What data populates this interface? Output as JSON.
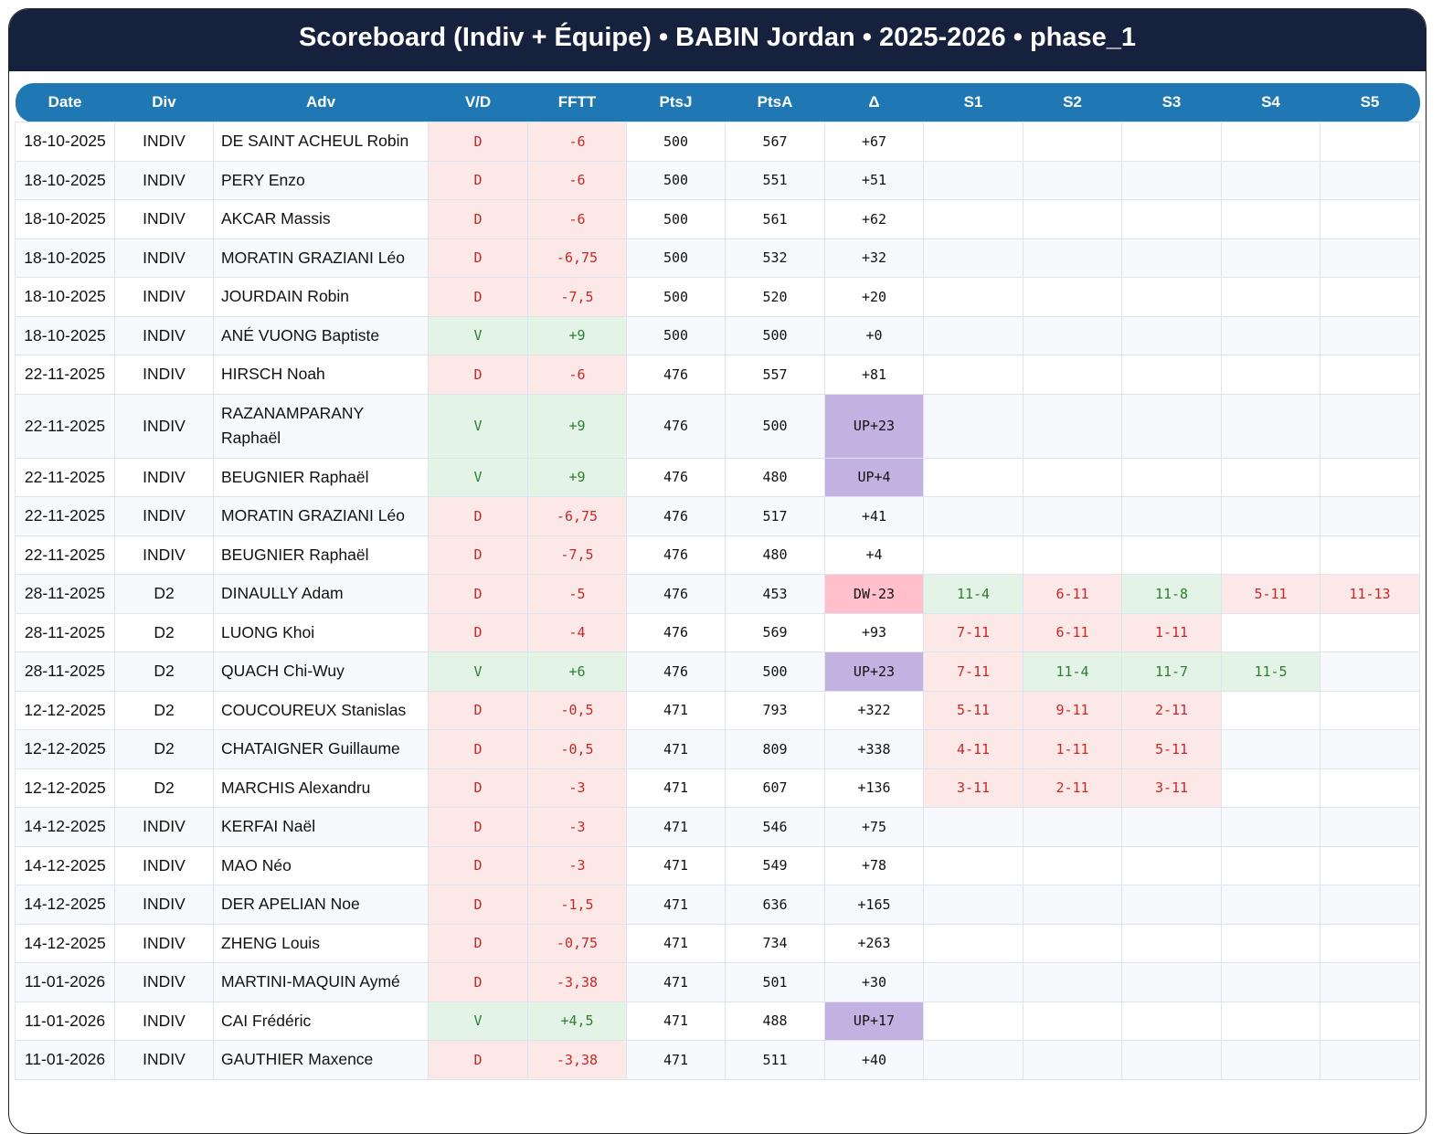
{
  "title": "Scoreboard (Indiv + Équipe) • BABIN Jordan • 2025-2026 • phase_1",
  "columns": [
    "Date",
    "Div",
    "Adv",
    "V/D",
    "FFTT",
    "PtsJ",
    "PtsA",
    "Δ",
    "S1",
    "S2",
    "S3",
    "S4",
    "S5"
  ],
  "colors": {
    "header_bg": "#16213e",
    "table_header": "#1f77b4",
    "win": "#2e7d32",
    "loss": "#c62828",
    "up": "#c3b1e1",
    "down": "#ffc0cb"
  },
  "rows": [
    [
      "18-10-2025",
      "INDIV",
      "DE SAINT ACHEUL Robin",
      "D",
      "-6",
      "500",
      "567",
      "+67",
      "",
      "",
      "",
      "",
      ""
    ],
    [
      "18-10-2025",
      "INDIV",
      "PERY Enzo",
      "D",
      "-6",
      "500",
      "551",
      "+51",
      "",
      "",
      "",
      "",
      ""
    ],
    [
      "18-10-2025",
      "INDIV",
      "AKCAR Massis",
      "D",
      "-6",
      "500",
      "561",
      "+62",
      "",
      "",
      "",
      "",
      ""
    ],
    [
      "18-10-2025",
      "INDIV",
      "MORATIN GRAZIANI Léo",
      "D",
      "-6,75",
      "500",
      "532",
      "+32",
      "",
      "",
      "",
      "",
      ""
    ],
    [
      "18-10-2025",
      "INDIV",
      "JOURDAIN Robin",
      "D",
      "-7,5",
      "500",
      "520",
      "+20",
      "",
      "",
      "",
      "",
      ""
    ],
    [
      "18-10-2025",
      "INDIV",
      "ANÉ VUONG Baptiste",
      "V",
      "+9",
      "500",
      "500",
      "+0",
      "",
      "",
      "",
      "",
      ""
    ],
    [
      "22-11-2025",
      "INDIV",
      "HIRSCH Noah",
      "D",
      "-6",
      "476",
      "557",
      "+81",
      "",
      "",
      "",
      "",
      ""
    ],
    [
      "22-11-2025",
      "INDIV",
      "RAZANAMPARANY Raphaël",
      "V",
      "+9",
      "476",
      "500",
      "UP+23",
      "",
      "",
      "",
      "",
      ""
    ],
    [
      "22-11-2025",
      "INDIV",
      "BEUGNIER Raphaël",
      "V",
      "+9",
      "476",
      "480",
      "UP+4",
      "",
      "",
      "",
      "",
      ""
    ],
    [
      "22-11-2025",
      "INDIV",
      "MORATIN GRAZIANI Léo",
      "D",
      "-6,75",
      "476",
      "517",
      "+41",
      "",
      "",
      "",
      "",
      ""
    ],
    [
      "22-11-2025",
      "INDIV",
      "BEUGNIER Raphaël",
      "D",
      "-7,5",
      "476",
      "480",
      "+4",
      "",
      "",
      "",
      "",
      ""
    ],
    [
      "28-11-2025",
      "D2",
      "DINAULLY Adam",
      "D",
      "-5",
      "476",
      "453",
      "DW-23",
      "11-4",
      "6-11",
      "11-8",
      "5-11",
      "11-13"
    ],
    [
      "28-11-2025",
      "D2",
      "LUONG Khoi",
      "D",
      "-4",
      "476",
      "569",
      "+93",
      "7-11",
      "6-11",
      "1-11",
      "",
      ""
    ],
    [
      "28-11-2025",
      "D2",
      "QUACH Chi-Wuy",
      "V",
      "+6",
      "476",
      "500",
      "UP+23",
      "7-11",
      "11-4",
      "11-7",
      "11-5",
      ""
    ],
    [
      "12-12-2025",
      "D2",
      "COUCOUREUX Stanislas",
      "D",
      "-0,5",
      "471",
      "793",
      "+322",
      "5-11",
      "9-11",
      "2-11",
      "",
      ""
    ],
    [
      "12-12-2025",
      "D2",
      "CHATAIGNER Guillaume",
      "D",
      "-0,5",
      "471",
      "809",
      "+338",
      "4-11",
      "1-11",
      "5-11",
      "",
      ""
    ],
    [
      "12-12-2025",
      "D2",
      "MARCHIS Alexandru",
      "D",
      "-3",
      "471",
      "607",
      "+136",
      "3-11",
      "2-11",
      "3-11",
      "",
      ""
    ],
    [
      "14-12-2025",
      "INDIV",
      "KERFAI Naël",
      "D",
      "-3",
      "471",
      "546",
      "+75",
      "",
      "",
      "",
      "",
      ""
    ],
    [
      "14-12-2025",
      "INDIV",
      "MAO Néo",
      "D",
      "-3",
      "471",
      "549",
      "+78",
      "",
      "",
      "",
      "",
      ""
    ],
    [
      "14-12-2025",
      "INDIV",
      "DER APELIAN Noe",
      "D",
      "-1,5",
      "471",
      "636",
      "+165",
      "",
      "",
      "",
      "",
      ""
    ],
    [
      "14-12-2025",
      "INDIV",
      "ZHENG Louis",
      "D",
      "-0,75",
      "471",
      "734",
      "+263",
      "",
      "",
      "",
      "",
      ""
    ],
    [
      "11-01-2026",
      "INDIV",
      "MARTINI-MAQUIN Aymé",
      "D",
      "-3,38",
      "471",
      "501",
      "+30",
      "",
      "",
      "",
      "",
      ""
    ],
    [
      "11-01-2026",
      "INDIV",
      "CAI Frédéric",
      "V",
      "+4,5",
      "471",
      "488",
      "UP+17",
      "",
      "",
      "",
      "",
      ""
    ],
    [
      "11-01-2026",
      "INDIV",
      "GAUTHIER Maxence",
      "D",
      "-3,38",
      "471",
      "511",
      "+40",
      "",
      "",
      "",
      "",
      ""
    ]
  ]
}
